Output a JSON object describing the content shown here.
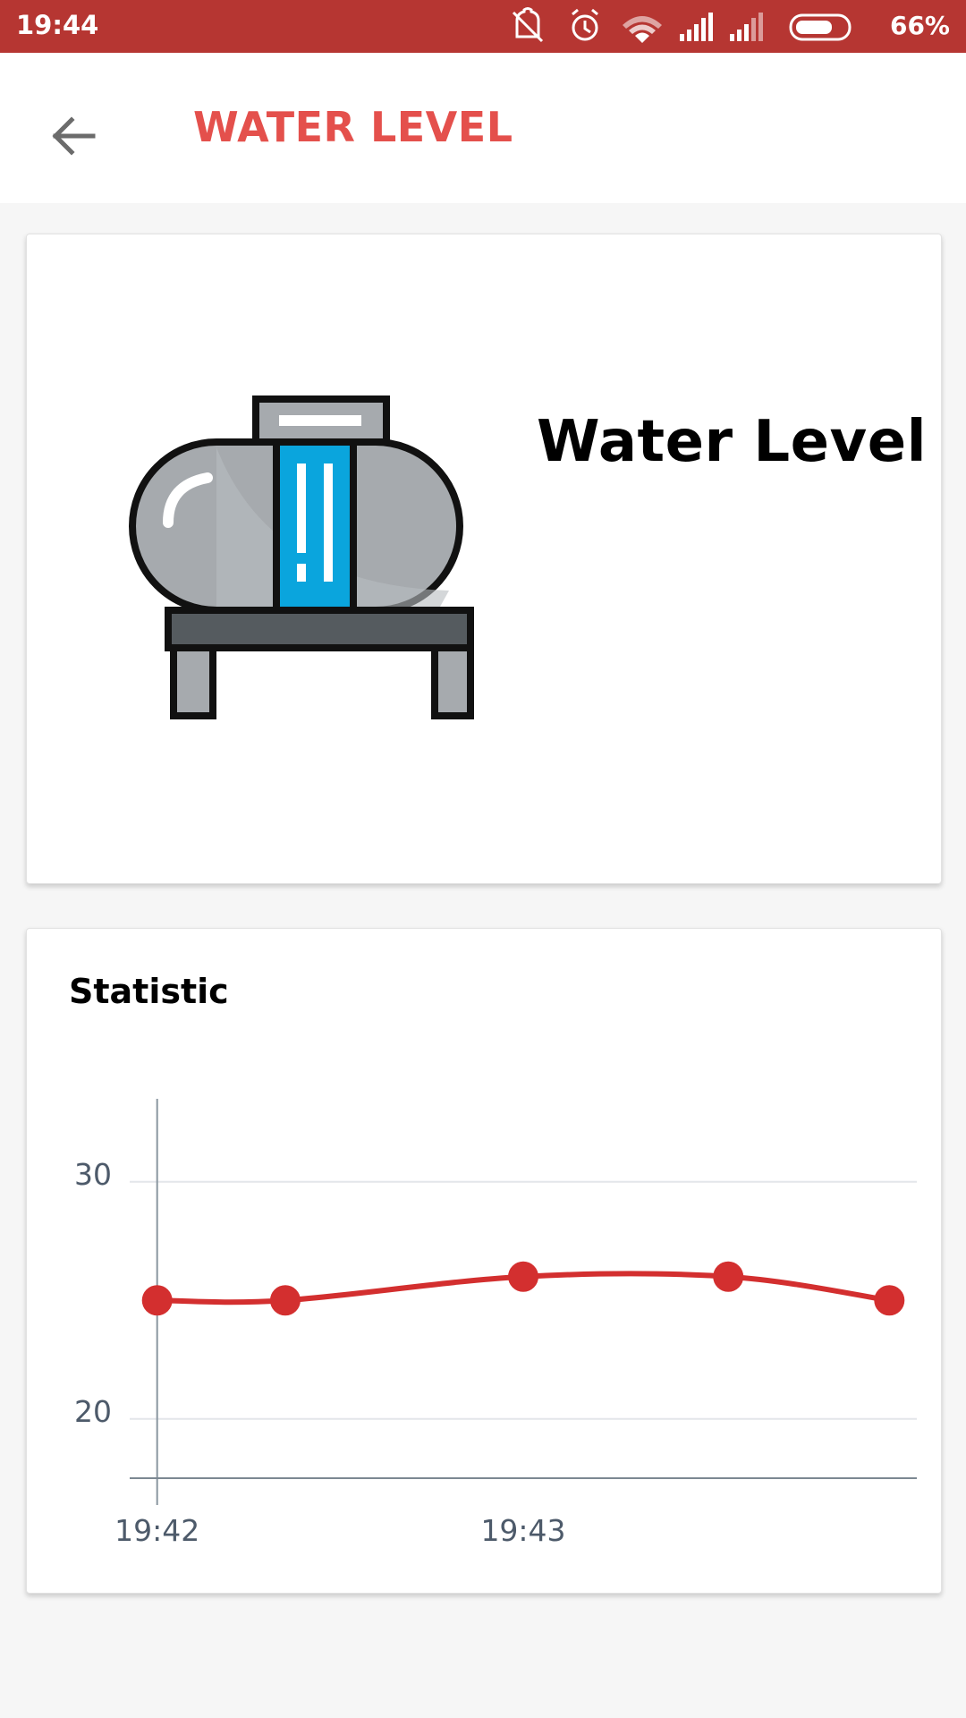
{
  "status_bar": {
    "time": "19:44",
    "battery": "66%",
    "icons": [
      "mute-vibrate-icon",
      "alarm-icon",
      "wifi-icon",
      "signal-icon",
      "signal-icon",
      "battery-icon"
    ],
    "background": "#b63632"
  },
  "app_bar": {
    "title": "WATER LEVEL",
    "title_color": "#e4504c",
    "back_icon": "arrow-left-icon"
  },
  "level_card": {
    "heading": "Water Level",
    "illustration": "water-tank-icon"
  },
  "stats_card": {
    "heading": "Statistic"
  },
  "chart_data": {
    "type": "line",
    "x": [
      0,
      0.35,
      1.0,
      1.56,
      2.0
    ],
    "xtick_values": [
      0,
      1
    ],
    "xtick_labels": [
      "19:42",
      "19:43"
    ],
    "values": [
      25,
      25,
      26,
      26,
      25
    ],
    "yticks": [
      20,
      30
    ],
    "ylim": [
      17.5,
      33.5
    ],
    "xlim": [
      -0.075,
      2.075
    ],
    "grid": "horizontal",
    "line_color": "#d32f2f"
  }
}
